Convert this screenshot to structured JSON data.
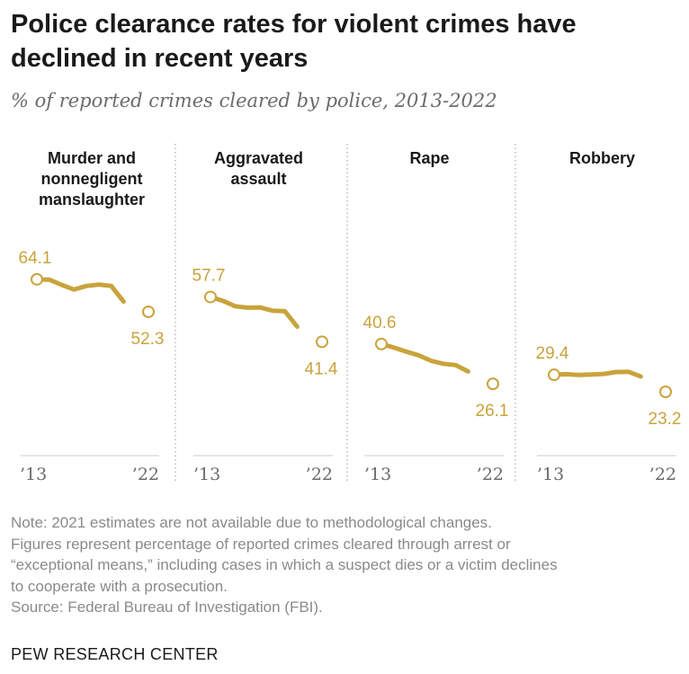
{
  "title": "Police clearance rates for violent crimes have declined in recent years",
  "subtitle": "% of reported crimes cleared by police, 2013-2022",
  "colors": {
    "line": "#c9a33c",
    "axis": "#cccccc",
    "divider": "#999999",
    "text": "#1a1a1a",
    "muted": "#8a8a8a"
  },
  "chart_data": {
    "type": "line",
    "x_tick_labels": [
      "’13",
      "’22"
    ],
    "ylim": [
      0,
      80
    ],
    "grid": false,
    "panels": [
      {
        "title": [
          "Murder and",
          "nonnegligent",
          "manslaughter"
        ],
        "x": [
          2013,
          2014,
          2015,
          2016,
          2017,
          2018,
          2019,
          2020
        ],
        "values": [
          64.1,
          64.0,
          62.1,
          60.4,
          61.7,
          62.2,
          61.7,
          56.0
        ],
        "end_x": 2022,
        "end_value": 52.3,
        "start_label": "64.1",
        "end_label": "52.3"
      },
      {
        "title": [
          "Aggravated",
          "assault"
        ],
        "x": [
          2013,
          2014,
          2015,
          2016,
          2017,
          2018,
          2019,
          2020
        ],
        "values": [
          57.7,
          56.3,
          54.3,
          53.8,
          53.9,
          52.7,
          52.5,
          46.9
        ],
        "end_x": 2022,
        "end_value": 41.4,
        "start_label": "57.7",
        "end_label": "41.4"
      },
      {
        "title": [
          "Rape"
        ],
        "x": [
          2013,
          2014,
          2015,
          2016,
          2017,
          2018,
          2019,
          2020
        ],
        "values": [
          40.6,
          39.3,
          37.8,
          36.5,
          34.5,
          33.4,
          32.9,
          30.6
        ],
        "end_x": 2022,
        "end_value": 26.1,
        "start_label": "40.6",
        "end_label": "26.1"
      },
      {
        "title": [
          "Robbery"
        ],
        "x": [
          2013,
          2014,
          2015,
          2016,
          2017,
          2018,
          2019,
          2020
        ],
        "values": [
          29.4,
          29.6,
          29.3,
          29.5,
          29.7,
          30.4,
          30.5,
          28.8
        ],
        "end_x": 2022,
        "end_value": 23.2,
        "start_label": "29.4",
        "end_label": "23.2"
      }
    ]
  },
  "notes": {
    "note_lines": [
      "Note: 2021 estimates are not available due to methodological changes.",
      "Figures represent percentage of reported crimes cleared through arrest or",
      "“exceptional means,” including cases in which a suspect dies or a victim declines",
      "to cooperate with a prosecution."
    ],
    "source": "Source: Federal Bureau of Investigation (FBI)."
  },
  "footer": "PEW RESEARCH CENTER"
}
